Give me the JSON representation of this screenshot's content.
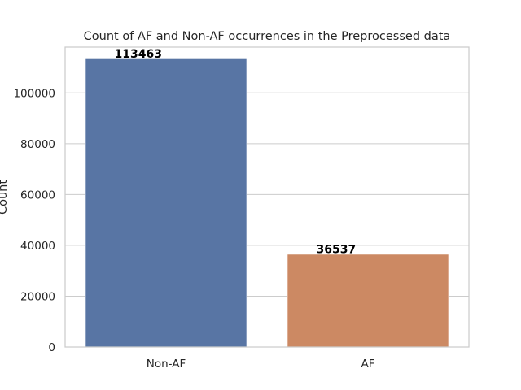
{
  "chart_data": {
    "type": "bar",
    "title": "Count of AF and Non-AF occurrences in the Preprocessed data",
    "xlabel": "",
    "ylabel": "Count",
    "categories": [
      "Non-AF",
      "AF"
    ],
    "values": [
      113463,
      36537
    ],
    "data_labels": [
      "113463",
      "36537"
    ],
    "bar_colors": [
      "#5875a4",
      "#cc8963"
    ],
    "ylim": [
      0,
      118000
    ],
    "yticks": [
      0,
      20000,
      40000,
      60000,
      80000,
      100000
    ],
    "ytick_labels": [
      "0",
      "20000",
      "40000",
      "60000",
      "80000",
      "100000"
    ],
    "grid": "horizontal",
    "legend": "none"
  }
}
